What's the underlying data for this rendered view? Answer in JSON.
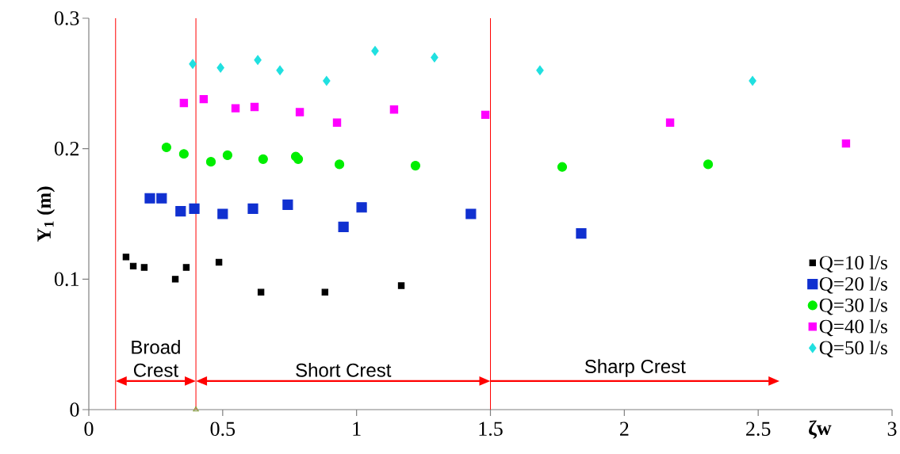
{
  "chart_data": {
    "type": "scatter",
    "xlabel": "ζw",
    "ylabel": "Y$_{1}$ (m)",
    "xlim": [
      0,
      3
    ],
    "ylim": [
      0,
      0.3
    ],
    "xticks": [
      0,
      0.5,
      1,
      1.5,
      2,
      2.5,
      3
    ],
    "yticks": [
      0,
      0.1,
      0.2,
      0.3
    ],
    "grid": false,
    "legend": "right",
    "series": [
      {
        "name": "Q=10 l/s",
        "color": "#000000",
        "marker": "square",
        "x": [
          0.139,
          0.166,
          0.207,
          0.323,
          0.364,
          0.486,
          0.643,
          0.882,
          1.167
        ],
        "values": [
          0.117,
          0.11,
          0.109,
          0.1,
          0.109,
          0.113,
          0.09,
          0.09,
          0.095
        ]
      },
      {
        "name": "Q=20 l/s",
        "color": "#1030d0",
        "marker": "square",
        "x": [
          0.228,
          0.272,
          0.343,
          0.394,
          0.5,
          0.613,
          0.743,
          0.951,
          1.019,
          1.427,
          1.839
        ],
        "values": [
          0.162,
          0.162,
          0.152,
          0.154,
          0.15,
          0.154,
          0.157,
          0.14,
          0.155,
          0.15,
          0.135
        ]
      },
      {
        "name": "Q=30 l/s",
        "color": "#00ee00",
        "marker": "circle",
        "x": [
          0.29,
          0.355,
          0.456,
          0.518,
          0.651,
          0.773,
          0.782,
          0.936,
          1.22,
          1.768,
          2.313
        ],
        "values": [
          0.201,
          0.196,
          0.19,
          0.195,
          0.192,
          0.194,
          0.192,
          0.188,
          0.187,
          0.186,
          0.188
        ]
      },
      {
        "name": "Q=40 l/s",
        "color": "#ff00ff",
        "marker": "square",
        "x": [
          0.355,
          0.429,
          0.548,
          0.619,
          0.788,
          0.927,
          1.14,
          1.481,
          2.171,
          2.828
        ],
        "values": [
          0.235,
          0.238,
          0.231,
          0.232,
          0.228,
          0.22,
          0.23,
          0.226,
          0.22,
          0.204
        ]
      },
      {
        "name": "Q=50 l/s",
        "color": "#20e0e0",
        "marker": "diamond",
        "x": [
          0.388,
          0.492,
          0.631,
          0.714,
          0.888,
          1.069,
          1.291,
          1.685,
          2.479
        ],
        "values": [
          0.265,
          0.262,
          0.268,
          0.26,
          0.252,
          0.275,
          0.27,
          0.26,
          0.252
        ]
      },
      {
        "color": "#8aa040",
        "marker": "triangle",
        "x": [
          0.4
        ],
        "values": [
          0
        ]
      }
    ],
    "ref_lines": [
      {
        "axis": "x",
        "value": 0.1,
        "color": "#ff0000"
      },
      {
        "axis": "x",
        "value": 0.4,
        "color": "#ff0000"
      },
      {
        "axis": "x",
        "value": 1.5,
        "color": "#ff0000"
      }
    ],
    "annotations": [
      "Broad Crest",
      "Short Crest",
      "Sharp Crest"
    ]
  }
}
